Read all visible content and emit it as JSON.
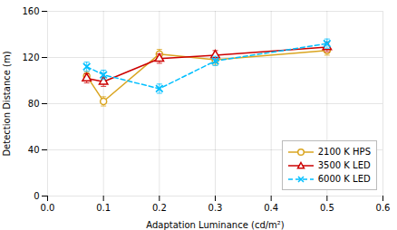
{
  "chart_data": {
    "type": "line",
    "xlabel": "Adaptation Luminance (cd/m²)",
    "ylabel": "Detection Distance (m)",
    "x": [
      0.07,
      0.1,
      0.2,
      0.3,
      0.5
    ],
    "series": [
      {
        "name": "2100 K HPS",
        "color": "#DAA520",
        "marker": "circle",
        "line_style": "solid",
        "values": [
          104,
          82,
          123,
          118,
          126
        ],
        "errors": [
          4,
          4,
          4,
          4,
          4
        ]
      },
      {
        "name": "3500 K LED",
        "color": "#CC0000",
        "marker": "triangle",
        "line_style": "solid",
        "values": [
          102,
          99,
          119,
          122,
          129
        ],
        "errors": [
          4,
          4,
          4,
          4,
          4
        ]
      },
      {
        "name": "6000 K LED",
        "color": "#00BFFF",
        "marker": "x",
        "line_style": "dashed",
        "values": [
          112,
          105,
          93,
          117,
          132
        ],
        "errors": [
          4,
          4,
          4,
          4,
          4
        ]
      }
    ],
    "xlim": [
      0,
      0.6
    ],
    "ylim": [
      0,
      160
    ],
    "xticks": [
      {
        "value": 0,
        "label": "0.0"
      },
      0.1,
      0.2,
      0.3,
      0.4,
      0.5,
      0.6
    ],
    "yticks": [
      0,
      40,
      80,
      120,
      160
    ],
    "grid": true,
    "legend": "lower right"
  }
}
